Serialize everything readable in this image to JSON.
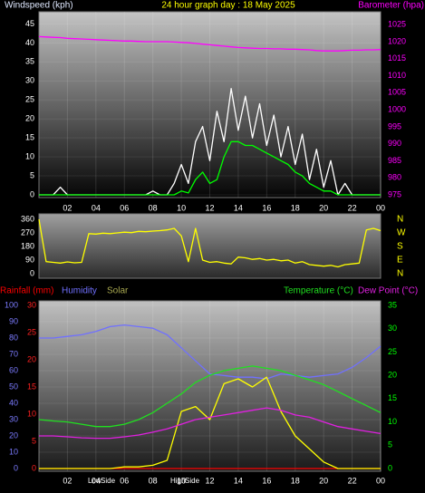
{
  "chart_data": [
    {
      "type": "line",
      "title": "24 hour graph day : 18 May 2025",
      "y_label": "Windspeed (kph)",
      "y2_label": "Barometer (hpa)",
      "x": [
        0,
        0.5,
        1,
        1.5,
        2,
        2.5,
        3,
        3.5,
        4,
        4.5,
        5,
        5.5,
        6,
        6.5,
        7,
        7.5,
        8,
        8.5,
        9,
        9.5,
        10,
        10.5,
        11,
        11.5,
        12,
        12.5,
        13,
        13.5,
        14,
        14.5,
        15,
        15.5,
        16,
        16.5,
        17,
        17.5,
        18,
        18.5,
        19,
        19.5,
        20,
        20.5,
        21,
        21.5,
        22,
        22.5,
        23,
        23.5,
        24
      ],
      "xlim": [
        0,
        24
      ],
      "xticks": [
        {
          "value": 2,
          "label": "02"
        },
        {
          "value": 4,
          "label": "04"
        },
        {
          "value": 6,
          "label": "06"
        },
        {
          "value": 8,
          "label": "08"
        },
        10,
        12,
        14,
        16,
        18,
        20,
        22,
        {
          "value": 24,
          "label": "00"
        }
      ],
      "ylim": [
        0,
        47.5
      ],
      "yticks": [
        0,
        5,
        10,
        15,
        20,
        25,
        30,
        35,
        40,
        45
      ],
      "y2lim": [
        975,
        1028
      ],
      "y2ticks": [
        975,
        980,
        985,
        990,
        995,
        1000,
        1005,
        1010,
        1015,
        1020,
        1025
      ],
      "grid": true,
      "series": [
        {
          "color": "#ffffff",
          "values": [
            0,
            0,
            0,
            2,
            0,
            0,
            0,
            0,
            0,
            0,
            0,
            0,
            0,
            0,
            0,
            0,
            1,
            0,
            0,
            3,
            8,
            3,
            14,
            18,
            9,
            22,
            14,
            28,
            17,
            26,
            15,
            24,
            13,
            21,
            10,
            18,
            8,
            16,
            4,
            12,
            2,
            9,
            0,
            3,
            0,
            0,
            0,
            0,
            0
          ]
        },
        {
          "color": "#00ff00",
          "values": [
            0,
            0,
            0,
            0,
            0,
            0,
            0,
            0,
            0,
            0,
            0,
            0,
            0,
            0,
            0,
            0,
            0,
            0,
            0,
            0,
            1,
            0.5,
            4,
            6,
            3,
            4,
            10,
            14,
            14,
            13,
            13,
            12,
            11,
            10,
            9,
            8,
            6,
            5,
            3,
            2,
            1,
            1,
            0,
            0,
            0,
            0,
            0,
            0,
            0
          ]
        },
        {
          "color": "#ff00ff",
          "axis": "y2",
          "values": [
            1021.5,
            1021.4,
            1021.3,
            1021.2,
            1021,
            1020.9,
            1020.8,
            1020.7,
            1020.6,
            1020.5,
            1020.4,
            1020.3,
            1020.2,
            1020.2,
            1020.1,
            1020,
            1020,
            1020,
            1020,
            1019.9,
            1019.8,
            1019.7,
            1019.5,
            1019.3,
            1019.1,
            1018.9,
            1018.7,
            1018.5,
            1018.3,
            1018.2,
            1018.1,
            1018,
            1018,
            1017.9,
            1017.9,
            1017.8,
            1017.8,
            1017.7,
            1017.6,
            1017.4,
            1017.3,
            1017.3,
            1017.3,
            1017.4,
            1017.5,
            1017.5,
            1017.6,
            1017.6,
            1017.7
          ]
        }
      ]
    },
    {
      "type": "line",
      "x": [
        0,
        0.5,
        1,
        1.5,
        2,
        2.5,
        3,
        3.5,
        4,
        4.5,
        5,
        5.5,
        6,
        6.5,
        7,
        7.5,
        8,
        8.5,
        9,
        9.5,
        10,
        10.5,
        11,
        11.5,
        12,
        12.5,
        13,
        13.5,
        14,
        14.5,
        15,
        15.5,
        16,
        16.5,
        17,
        17.5,
        18,
        18.5,
        19,
        19.5,
        20,
        20.5,
        21,
        21.5,
        22,
        22.5,
        23,
        23.5,
        24
      ],
      "xlim": [
        0,
        24
      ],
      "ylim": [
        0,
        360
      ],
      "yticks": [
        0,
        90,
        180,
        270,
        360
      ],
      "y2lim": [
        0,
        360
      ],
      "y2ticks": [
        {
          "value": 0,
          "label": "N"
        },
        {
          "value": 90,
          "label": "E"
        },
        {
          "value": 180,
          "label": "S"
        },
        {
          "value": 270,
          "label": "W"
        },
        {
          "value": 360,
          "label": "N"
        }
      ],
      "series": [
        {
          "color": "#ffff00",
          "values": [
            360,
            80,
            75,
            70,
            78,
            72,
            75,
            265,
            262,
            268,
            265,
            270,
            275,
            272,
            280,
            278,
            282,
            285,
            290,
            300,
            250,
            80,
            300,
            90,
            75,
            80,
            70,
            65,
            110,
            105,
            95,
            100,
            90,
            95,
            85,
            90,
            70,
            80,
            60,
            55,
            50,
            55,
            45,
            60,
            65,
            70,
            290,
            300,
            285
          ]
        }
      ]
    },
    {
      "type": "line",
      "x": [
        0,
        1,
        2,
        3,
        4,
        5,
        6,
        7,
        8,
        9,
        10,
        11,
        12,
        13,
        14,
        15,
        16,
        17,
        18,
        19,
        20,
        21,
        22,
        23,
        24
      ],
      "xlim": [
        0,
        24
      ],
      "xticks": [
        {
          "value": 2,
          "label": "02"
        },
        {
          "value": 4,
          "label": "04"
        },
        {
          "value": 6,
          "label": "06"
        },
        {
          "value": 8,
          "label": "08"
        },
        10,
        12,
        14,
        16,
        18,
        20,
        22,
        {
          "value": 24,
          "label": "00"
        }
      ],
      "ylim": [
        0,
        100
      ],
      "yticks": [
        0,
        10,
        20,
        30,
        40,
        50,
        60,
        70,
        80,
        90,
        100
      ],
      "y2lim": [
        0,
        35
      ],
      "y2ticks": [
        0,
        5,
        10,
        15,
        20,
        25,
        30,
        35
      ],
      "y3lim": [
        0,
        30
      ],
      "y3ticks": [
        0,
        5,
        10,
        15,
        20,
        25,
        30
      ],
      "grid": true,
      "annotations": [
        "Low",
        "Side",
        "High",
        "Side"
      ],
      "series": [
        {
          "name": "Rainfall (mm)",
          "color": "#ff0000",
          "axis": "y3",
          "values": [
            0,
            0,
            0,
            0,
            0,
            0,
            0,
            0,
            0,
            0,
            0,
            0,
            0,
            0,
            0,
            0,
            0,
            0,
            0,
            0,
            0,
            0,
            0,
            0,
            0
          ]
        },
        {
          "name": "Humidity",
          "color": "#7070ff",
          "values": [
            80,
            80,
            81,
            82,
            84,
            87,
            88,
            87,
            86,
            82,
            74,
            66,
            58,
            57,
            56,
            56,
            55,
            58,
            57,
            56,
            57,
            58,
            62,
            68,
            75
          ]
        },
        {
          "name": "Solar",
          "color": "#ffff00",
          "values": [
            0,
            0,
            0,
            0,
            0,
            0,
            1,
            1,
            2,
            5,
            35,
            38,
            30,
            52,
            55,
            50,
            56,
            35,
            20,
            12,
            4,
            0,
            0,
            0,
            0
          ]
        },
        {
          "name": "Temperature (°C)",
          "color": "#20e020",
          "axis": "y2",
          "values": [
            10.5,
            10.2,
            10,
            9.5,
            9,
            9,
            9.5,
            10.5,
            12,
            14,
            16,
            18.5,
            20,
            21,
            21.5,
            22,
            21.5,
            21,
            20,
            19,
            18,
            16.5,
            15,
            13.5,
            12
          ]
        },
        {
          "name": "Dew Point (°C)",
          "color": "#e020e0",
          "axis": "y2",
          "values": [
            7,
            7,
            6.8,
            6.6,
            6.5,
            6.5,
            6.8,
            7.2,
            7.8,
            8.5,
            9.5,
            10.5,
            11,
            11.5,
            12,
            12.5,
            13,
            12.5,
            11.5,
            11,
            10,
            9,
            8.5,
            8,
            7.5
          ]
        }
      ]
    }
  ]
}
